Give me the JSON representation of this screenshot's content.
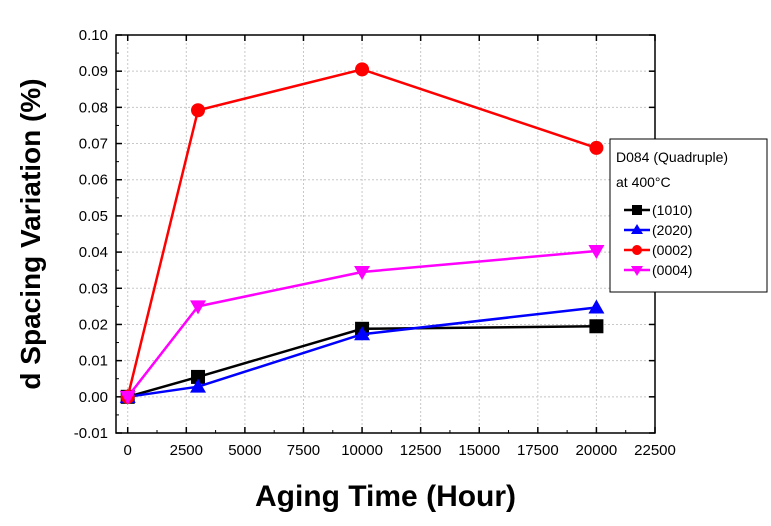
{
  "chart_data": {
    "type": "line",
    "xlabel": "Aging Time (Hour)",
    "ylabel": "d Spacing Variation (%)",
    "xlim": [
      -500,
      22500
    ],
    "ylim": [
      -0.01,
      0.1
    ],
    "x_ticks": [
      0,
      2500,
      5000,
      7500,
      10000,
      12500,
      15000,
      17500,
      20000,
      22500
    ],
    "y_ticks": [
      -0.01,
      0.0,
      0.01,
      0.02,
      0.03,
      0.04,
      0.05,
      0.06,
      0.07,
      0.08,
      0.09,
      0.1
    ],
    "x_tick_labels": [
      "0",
      "2500",
      "5000",
      "7500",
      "10000",
      "12500",
      "15000",
      "17500",
      "20000",
      "22500"
    ],
    "y_tick_labels": [
      "-0.01",
      "0.00",
      "0.01",
      "0.02",
      "0.03",
      "0.04",
      "0.05",
      "0.06",
      "0.07",
      "0.08",
      "0.09",
      "0.10"
    ],
    "grid": true,
    "legend_placement": "right",
    "legend_title_line1": "D084 (Quadruple)",
    "legend_title_line2": "at 400°C",
    "series": [
      {
        "name": "(1010)",
        "color": "#000000",
        "marker": "square",
        "x": [
          0,
          3000,
          10000,
          20000
        ],
        "y": [
          0.0,
          0.0055,
          0.0188,
          0.0195
        ]
      },
      {
        "name": "(2020)",
        "color": "#0000ff",
        "marker": "triangle-up",
        "x": [
          0,
          3000,
          10000,
          20000
        ],
        "y": [
          0.0,
          0.0028,
          0.0173,
          0.0247
        ]
      },
      {
        "name": "(0002)",
        "color": "#ff0000",
        "marker": "circle",
        "x": [
          0,
          3000,
          10000,
          20000
        ],
        "y": [
          0.0,
          0.0792,
          0.0905,
          0.0688
        ]
      },
      {
        "name": "(0004)",
        "color": "#ff00ff",
        "marker": "triangle-down",
        "x": [
          0,
          3000,
          10000,
          20000
        ],
        "y": [
          0.0,
          0.025,
          0.0345,
          0.0403
        ]
      }
    ]
  }
}
